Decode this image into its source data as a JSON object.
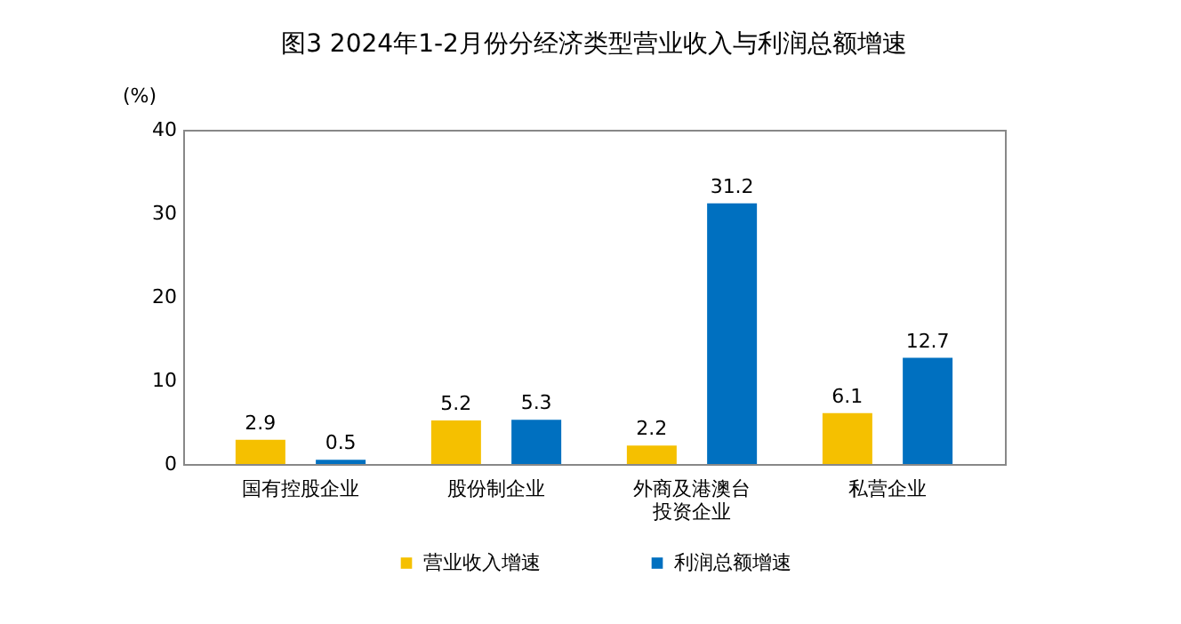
{
  "chart_data": {
    "type": "bar",
    "title": "图3 2024年1-2月份分经济类型营业收入与利润总额增速",
    "ylabel": "(%)",
    "categories": [
      "国有控股企业",
      "股份制企业",
      "外商及港澳台投资企业",
      "私营企业"
    ],
    "series": [
      {
        "name": "营业收入增速",
        "color": "#f5c000",
        "values": [
          2.9,
          5.2,
          2.2,
          6.1
        ]
      },
      {
        "name": "利润总额增速",
        "color": "#0070c0",
        "values": [
          0.5,
          5.3,
          31.2,
          12.7
        ]
      }
    ],
    "ylim": [
      0,
      40
    ],
    "yticks": [
      0,
      10,
      20,
      30,
      40
    ],
    "data_labels": true,
    "legend": "bottom",
    "grid": false
  }
}
